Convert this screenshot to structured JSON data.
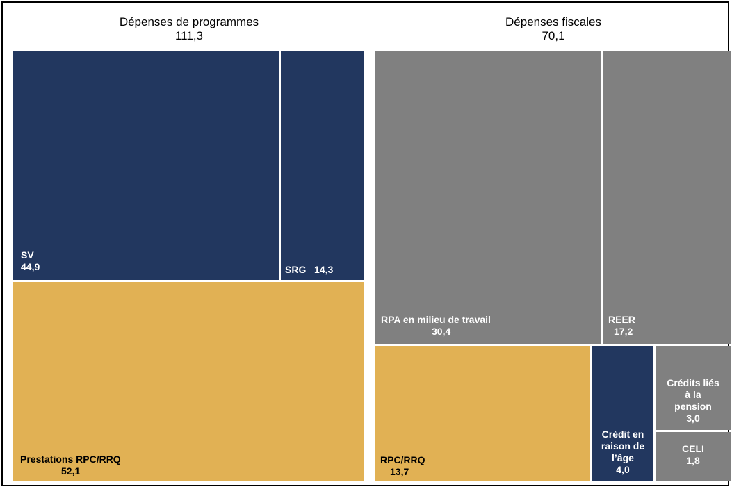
{
  "chart_data": {
    "type": "treemap",
    "colors": {
      "navy": "#22375f",
      "gold": "#e1b154",
      "gray": "#808080"
    },
    "groups": [
      {
        "name": "Dépenses de programmes",
        "total": "111,3",
        "items": [
          {
            "name": "SV",
            "value": "44,9",
            "color": "#22375f"
          },
          {
            "name": "SRG",
            "value": "14,3",
            "color": "#22375f"
          },
          {
            "name": "Prestations RPC/RRQ",
            "value": "52,1",
            "color": "#e1b154"
          }
        ]
      },
      {
        "name": "Dépenses fiscales",
        "total": "70,1",
        "items": [
          {
            "name": "RPA en milieu de travail",
            "value": "30,4",
            "color": "#808080"
          },
          {
            "name": "REER",
            "value": "17,2",
            "color": "#808080"
          },
          {
            "name": "RPC/RRQ",
            "value": "13,7",
            "color": "#e1b154"
          },
          {
            "name": "Crédit en raison de l’âge",
            "name_lines": [
              "Crédit en",
              "raison de",
              "l’âge"
            ],
            "value": "4,0",
            "color": "#22375f"
          },
          {
            "name": "Crédits liés à la pension",
            "name_lines": [
              "Crédits liés",
              "à la",
              "pension"
            ],
            "value": "3,0",
            "color": "#808080"
          },
          {
            "name": "CELI",
            "value": "1,8",
            "color": "#808080"
          }
        ]
      }
    ]
  }
}
